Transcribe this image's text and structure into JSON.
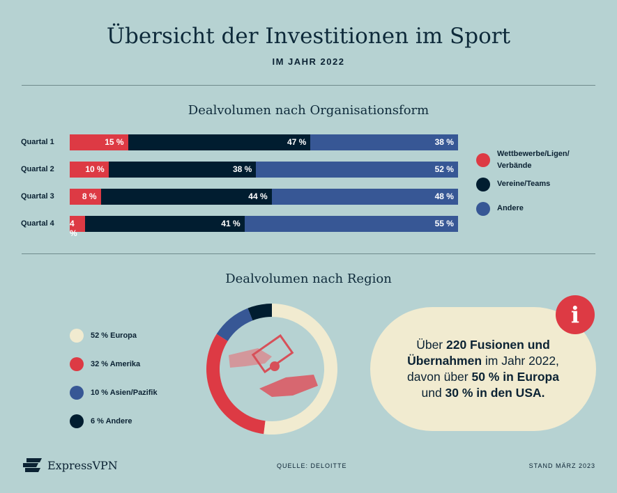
{
  "title": "Übersicht der Investitionen im Sport",
  "subtitle": "IM JAHR 2022",
  "colors": {
    "background": "#b6d2d2",
    "red": "#dd3a44",
    "navy": "#011d30",
    "blue": "#375795",
    "cream": "#f1ebd0"
  },
  "chart_data": [
    {
      "type": "bar",
      "orientation": "horizontal-stacked-100",
      "title": "Dealvolumen nach Organisationsform",
      "categories": [
        "Quartal 1",
        "Quartal 2",
        "Quartal 3",
        "Quartal 4"
      ],
      "legend_position": "right",
      "series": [
        {
          "name": "Wettbewerbe/Ligen/ Verbände",
          "color": "#dd3a44",
          "values": [
            15,
            10,
            8,
            4
          ],
          "labels": [
            "15 %",
            "10 %",
            "8 %",
            "4 %"
          ]
        },
        {
          "name": "Vereine/Teams",
          "color": "#011d30",
          "values": [
            47,
            38,
            44,
            41
          ],
          "labels": [
            "47 %",
            "38 %",
            "44 %",
            "41 %"
          ]
        },
        {
          "name": "Andere",
          "color": "#375795",
          "values": [
            38,
            52,
            48,
            55
          ],
          "labels": [
            "38 %",
            "52 %",
            "48 %",
            "55 %"
          ]
        }
      ]
    },
    {
      "type": "pie",
      "variant": "donut",
      "title": "Dealvolumen nach Region",
      "legend_position": "left",
      "slices": [
        {
          "name": "Europa",
          "value": 52,
          "label": "52 % Europa",
          "color": "#f1ebd0"
        },
        {
          "name": "Amerika",
          "value": 32,
          "label": "32 % Amerika",
          "color": "#dd3a44"
        },
        {
          "name": "Asien/Pazifik",
          "value": 10,
          "label": "10 % Asien/Pazifik",
          "color": "#375795"
        },
        {
          "name": "Andere",
          "value": 6,
          "label": "6 % Andere",
          "color": "#011d30"
        }
      ]
    }
  ],
  "info": {
    "icon": "info-icon",
    "glyph": "i",
    "parts": [
      {
        "t": "Über ",
        "b": false
      },
      {
        "t": "220 Fusionen und",
        "b": true
      },
      {
        "br": true
      },
      {
        "t": "Übernahmen",
        "b": true
      },
      {
        "t": " im Jahr 2022,",
        "b": false
      },
      {
        "br": true
      },
      {
        "t": "davon über ",
        "b": false
      },
      {
        "t": "50 % in Europa",
        "b": true
      },
      {
        "br": true
      },
      {
        "t": "und ",
        "b": false
      },
      {
        "t": "30 % in den USA.",
        "b": true
      }
    ]
  },
  "footer": {
    "brand": "ExpressVPN",
    "source": "QUELLE: DELOITTE",
    "date": "STAND MÄRZ 2023"
  }
}
